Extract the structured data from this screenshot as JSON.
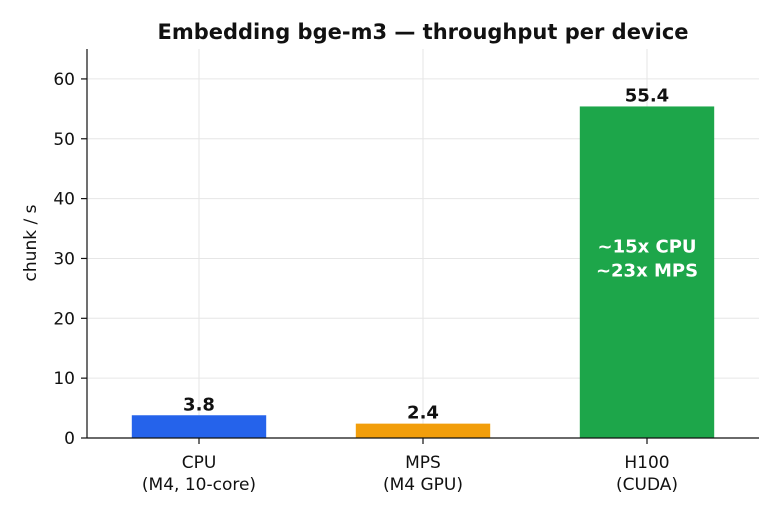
{
  "chart_data": {
    "type": "bar",
    "title": "Embedding bge-m3 — throughput per device",
    "ylabel": "chunk / s",
    "xlabel": "",
    "ylim": [
      0,
      65
    ],
    "yticks": [
      0,
      10,
      20,
      30,
      40,
      50,
      60
    ],
    "grid": true,
    "categories": [
      [
        "CPU",
        "(M4, 10-core)"
      ],
      [
        "MPS",
        "(M4 GPU)"
      ],
      [
        "H100",
        "(CUDA)"
      ]
    ],
    "values": [
      3.8,
      2.4,
      55.4
    ],
    "value_labels": [
      "3.8",
      "2.4",
      "55.4"
    ],
    "colors": [
      "#2563eb",
      "#f29e0b",
      "#1da64a"
    ],
    "annotation": {
      "bar_index": 2,
      "lines": [
        "~15x CPU",
        "~23x MPS"
      ],
      "at_value": 30
    }
  }
}
